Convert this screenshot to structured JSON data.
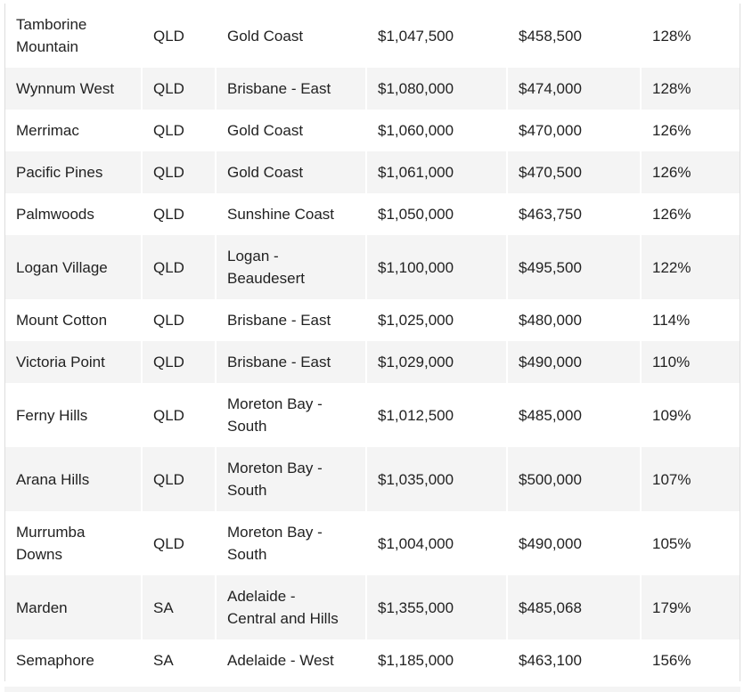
{
  "table": {
    "rows": [
      [
        "Tamborine Mountain",
        "QLD",
        "Gold Coast",
        "$1,047,500",
        "$458,500",
        "128%"
      ],
      [
        "Wynnum West",
        "QLD",
        "Brisbane - East",
        "$1,080,000",
        "$474,000",
        "128%"
      ],
      [
        "Merrimac",
        "QLD",
        "Gold Coast",
        "$1,060,000",
        "$470,000",
        "126%"
      ],
      [
        "Pacific Pines",
        "QLD",
        "Gold Coast",
        "$1,061,000",
        "$470,500",
        "126%"
      ],
      [
        "Palmwoods",
        "QLD",
        "Sunshine Coast",
        "$1,050,000",
        "$463,750",
        "126%"
      ],
      [
        "Logan Village",
        "QLD",
        "Logan - Beaudesert",
        "$1,100,000",
        "$495,500",
        "122%"
      ],
      [
        "Mount Cotton",
        "QLD",
        "Brisbane - East",
        "$1,025,000",
        "$480,000",
        "114%"
      ],
      [
        "Victoria Point",
        "QLD",
        "Brisbane - East",
        "$1,029,000",
        "$490,000",
        "110%"
      ],
      [
        "Ferny Hills",
        "QLD",
        "Moreton Bay - South",
        "$1,012,500",
        "$485,000",
        "109%"
      ],
      [
        "Arana Hills",
        "QLD",
        "Moreton Bay - South",
        "$1,035,000",
        "$500,000",
        "107%"
      ],
      [
        "Murrumba Downs",
        "QLD",
        "Moreton Bay - South",
        "$1,004,000",
        "$490,000",
        "105%"
      ],
      [
        "Marden",
        "SA",
        "Adelaide - Central and Hills",
        "$1,355,000",
        "$485,068",
        "179%"
      ],
      [
        "Semaphore",
        "SA",
        "Adelaide - West",
        "$1,185,000",
        "$463,100",
        "156%"
      ]
    ]
  }
}
